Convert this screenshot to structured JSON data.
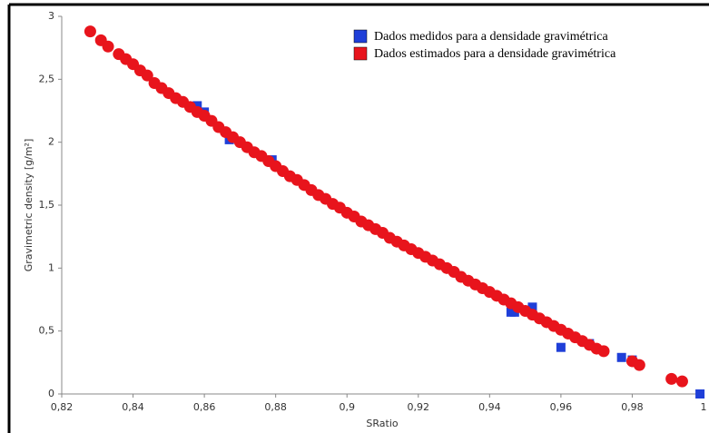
{
  "chart_data": {
    "type": "scatter",
    "x_label": "SRatio",
    "y_label": "Gravimetric density [g/m²]",
    "xlim": [
      0.82,
      1
    ],
    "ylim": [
      0,
      3
    ],
    "xticks": [
      {
        "value": 0.82,
        "label": "0,82"
      },
      {
        "value": 0.84,
        "label": "0,84"
      },
      {
        "value": 0.86,
        "label": "0,86"
      },
      {
        "value": 0.88,
        "label": "0,88"
      },
      {
        "value": 0.9,
        "label": "0,9"
      },
      {
        "value": 0.92,
        "label": "0,92"
      },
      {
        "value": 0.94,
        "label": "0,94"
      },
      {
        "value": 0.96,
        "label": "0,96"
      },
      {
        "value": 0.98,
        "label": "0,98"
      },
      1
    ],
    "yticks": [
      0,
      {
        "value": 0.5,
        "label": "0,5"
      },
      1,
      {
        "value": 1.5,
        "label": "1,5"
      },
      2,
      {
        "value": 2.5,
        "label": "2,5"
      },
      3
    ],
    "legend": "upper right",
    "series": [
      {
        "name": "Dados medidos para a densidade gravimétrica",
        "color": "#1f3fd8",
        "marker": "square",
        "x": [
          0.858,
          0.86,
          0.867,
          0.879,
          0.946,
          0.947,
          0.952,
          0.96,
          0.968,
          0.977,
          0.98,
          0.999
        ],
        "values": [
          2.29,
          2.24,
          2.02,
          1.86,
          0.65,
          0.65,
          0.69,
          0.37,
          0.4,
          0.29,
          0.27,
          0
        ]
      },
      {
        "name": "Dados estimados para a densidade gravimétrica",
        "color": "#e8141c",
        "marker": "circle",
        "x": [
          0.828,
          0.831,
          0.833,
          0.836,
          0.838,
          0.84,
          0.842,
          0.844,
          0.846,
          0.848,
          0.85,
          0.852,
          0.854,
          0.856,
          0.858,
          0.86,
          0.862,
          0.864,
          0.866,
          0.868,
          0.87,
          0.872,
          0.874,
          0.876,
          0.878,
          0.88,
          0.882,
          0.884,
          0.886,
          0.888,
          0.89,
          0.892,
          0.894,
          0.896,
          0.898,
          0.9,
          0.902,
          0.904,
          0.906,
          0.908,
          0.91,
          0.912,
          0.914,
          0.916,
          0.918,
          0.92,
          0.922,
          0.924,
          0.926,
          0.928,
          0.93,
          0.932,
          0.934,
          0.936,
          0.938,
          0.94,
          0.942,
          0.944,
          0.946,
          0.948,
          0.95,
          0.952,
          0.954,
          0.956,
          0.958,
          0.96,
          0.962,
          0.964,
          0.966,
          0.968,
          0.97,
          0.972,
          0.98,
          0.982,
          0.991,
          0.994
        ],
        "values": [
          2.88,
          2.81,
          2.76,
          2.7,
          2.66,
          2.62,
          2.57,
          2.53,
          2.47,
          2.43,
          2.39,
          2.35,
          2.32,
          2.28,
          2.24,
          2.21,
          2.17,
          2.12,
          2.08,
          2.04,
          2.0,
          1.96,
          1.92,
          1.89,
          1.85,
          1.81,
          1.77,
          1.73,
          1.7,
          1.66,
          1.62,
          1.58,
          1.55,
          1.51,
          1.48,
          1.44,
          1.41,
          1.37,
          1.34,
          1.31,
          1.28,
          1.24,
          1.21,
          1.18,
          1.15,
          1.12,
          1.09,
          1.06,
          1.03,
          1.0,
          0.97,
          0.93,
          0.9,
          0.87,
          0.84,
          0.81,
          0.78,
          0.75,
          0.72,
          0.69,
          0.66,
          0.63,
          0.6,
          0.57,
          0.54,
          0.51,
          0.48,
          0.45,
          0.42,
          0.39,
          0.36,
          0.34,
          0.26,
          0.23,
          0.12,
          0.1
        ]
      }
    ]
  }
}
